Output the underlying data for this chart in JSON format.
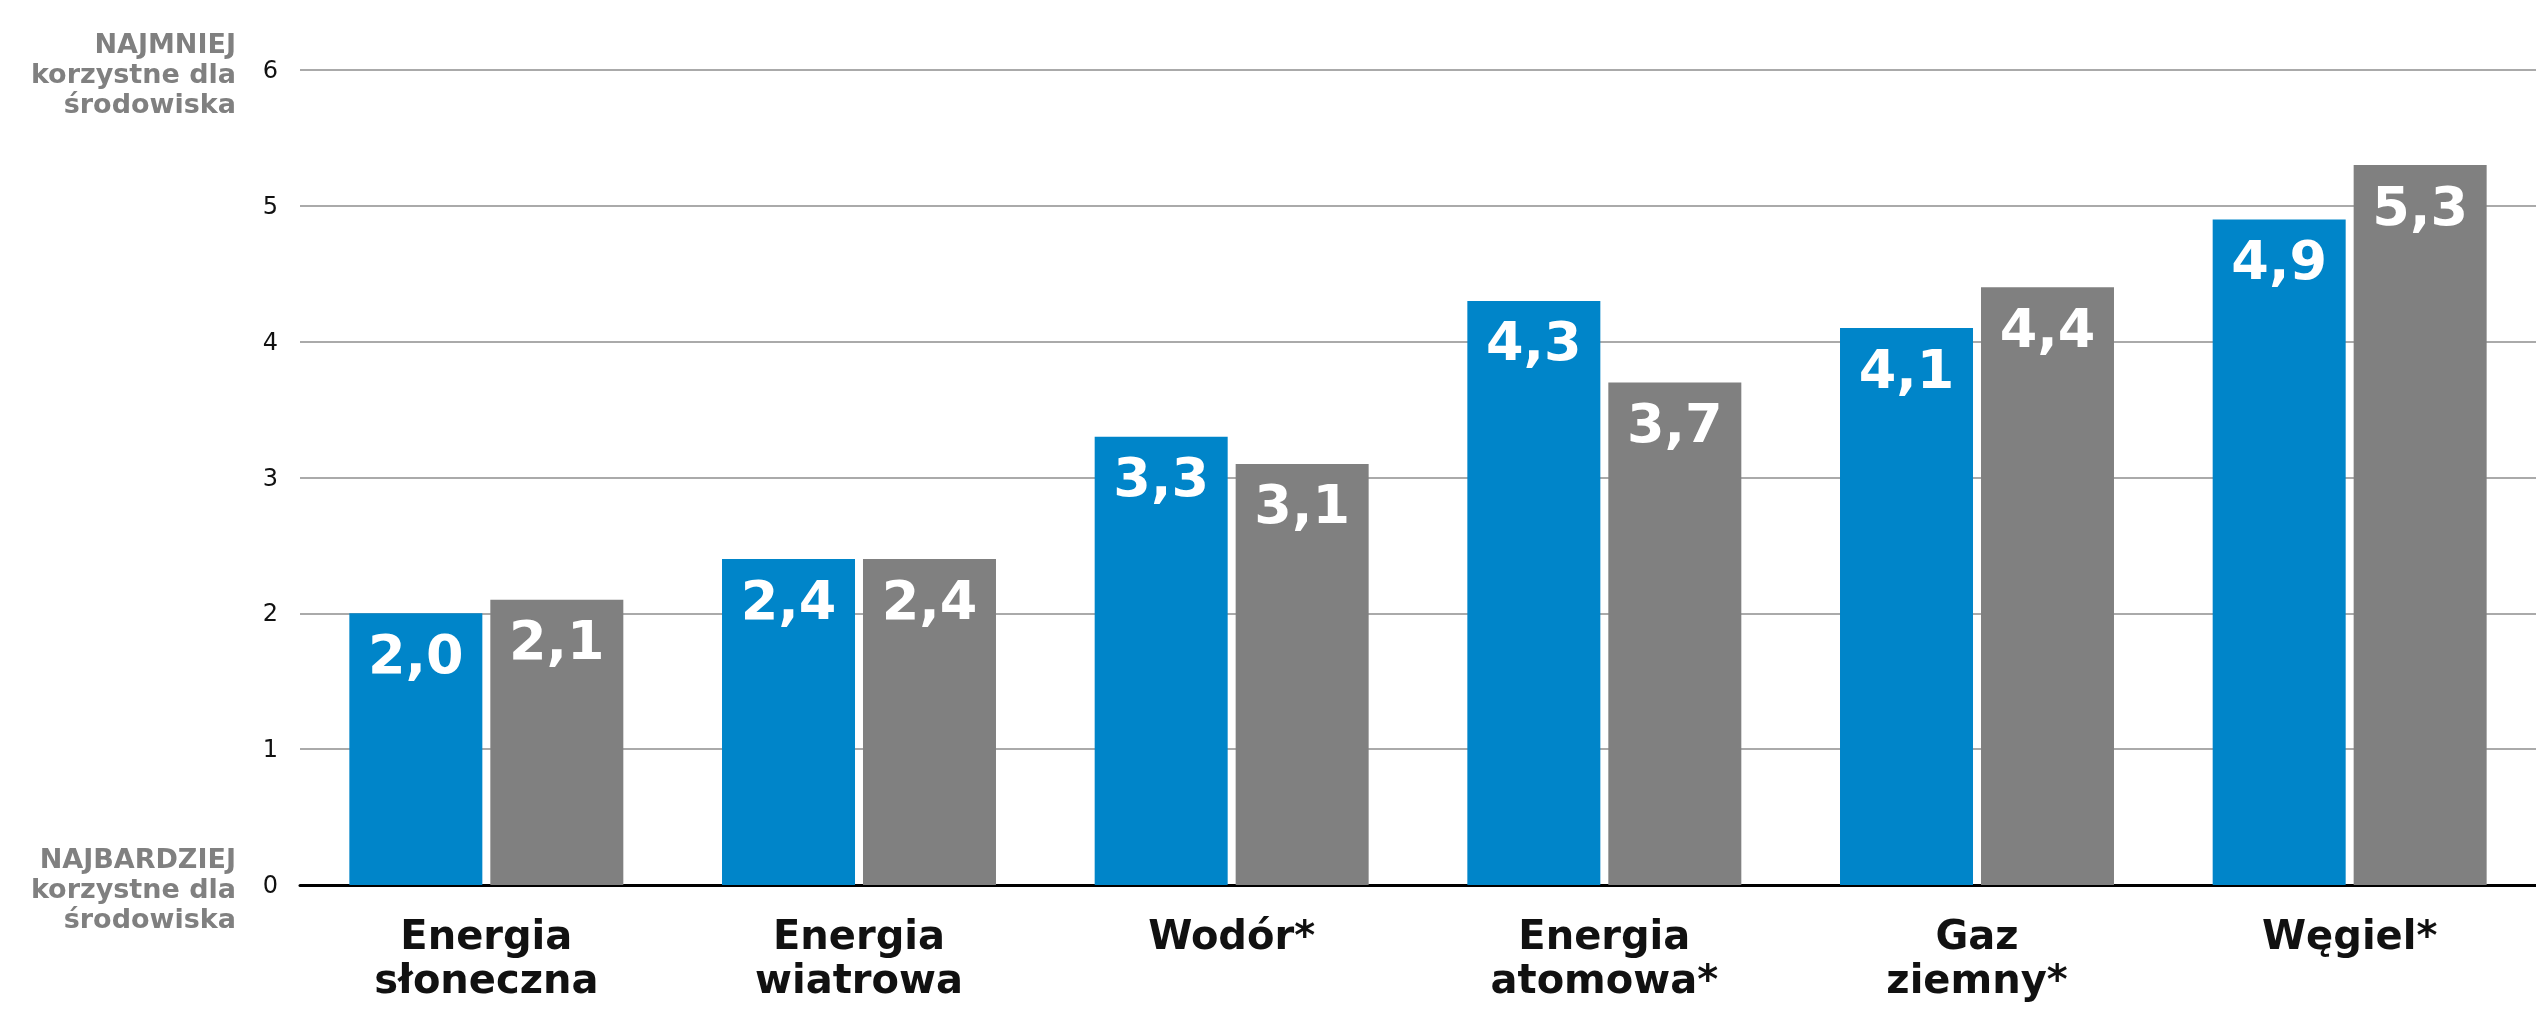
{
  "chart_data": {
    "type": "bar",
    "categories": [
      "Energia słoneczna",
      "Energia wiatrowa",
      "Wodór*",
      "Energia atomowa*",
      "Gaz ziemny*",
      "Węgiel*"
    ],
    "series": [
      {
        "color": "#0085c9",
        "values": [
          2.0,
          2.4,
          3.3,
          4.3,
          4.1,
          4.9
        ],
        "value_labels": [
          "2,0",
          "2,4",
          "3,3",
          "4,3",
          "4,1",
          "4,9"
        ]
      },
      {
        "color": "#808080",
        "values": [
          2.1,
          2.4,
          3.1,
          3.7,
          4.4,
          5.3
        ],
        "value_labels": [
          "2,1",
          "2,4",
          "3,1",
          "3,7",
          "4,4",
          "5,3"
        ]
      }
    ],
    "ylim": [
      0,
      6
    ],
    "yticks": [
      0,
      1,
      2,
      3,
      4,
      5,
      6
    ],
    "grid": "y",
    "annotations": [
      "NAJMNIEJ\nkorzystne dla\nśrodowiska",
      "NAJBARDZIEJ\nkorzystne dla\nśrodowiska"
    ]
  }
}
